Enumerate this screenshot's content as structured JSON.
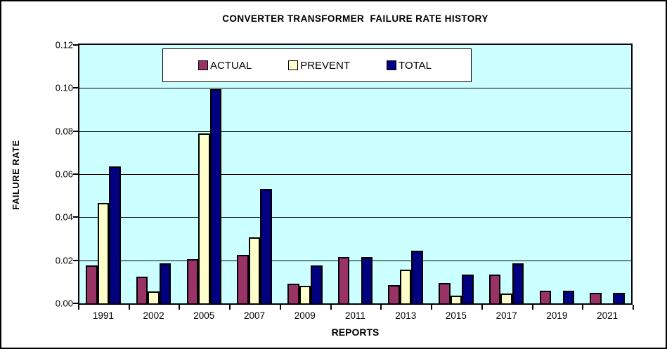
{
  "chart_data": {
    "type": "bar",
    "title": "CONVERTER TRANSFORMER  FAILURE RATE HISTORY",
    "xlabel": "REPORTS",
    "ylabel": "FAILURE RATE",
    "categories": [
      "1991",
      "2002",
      "2005",
      "2007",
      "2009",
      "2011",
      "2013",
      "2015",
      "2017",
      "2019",
      "2021"
    ],
    "series": [
      {
        "name": "ACTUAL",
        "color": "#993366",
        "values": [
          0.0175,
          0.0125,
          0.0205,
          0.0225,
          0.009,
          0.0215,
          0.0085,
          0.0095,
          0.0135,
          0.006,
          0.005
        ]
      },
      {
        "name": "PREVENT",
        "color": "#ffffcc",
        "values": [
          0.0465,
          0.0055,
          0.079,
          0.0305,
          0.008,
          0,
          0.0155,
          0.0035,
          0.0045,
          0,
          0
        ]
      },
      {
        "name": "TOTAL",
        "color": "#000080",
        "values": [
          0.0635,
          0.0185,
          0.0995,
          0.053,
          0.0175,
          0.0215,
          0.0245,
          0.0135,
          0.0185,
          0.006,
          0.005
        ]
      }
    ],
    "ylim": [
      0,
      0.12
    ],
    "ytick_step": 0.02,
    "ytick_labels": [
      "0.00",
      "0.02",
      "0.04",
      "0.06",
      "0.08",
      "0.10",
      "0.12"
    ],
    "grid": true,
    "legend_position": "top-center",
    "plot_background": "#ccffff",
    "outer_background": "#ffffff",
    "border_color": "#000000"
  }
}
